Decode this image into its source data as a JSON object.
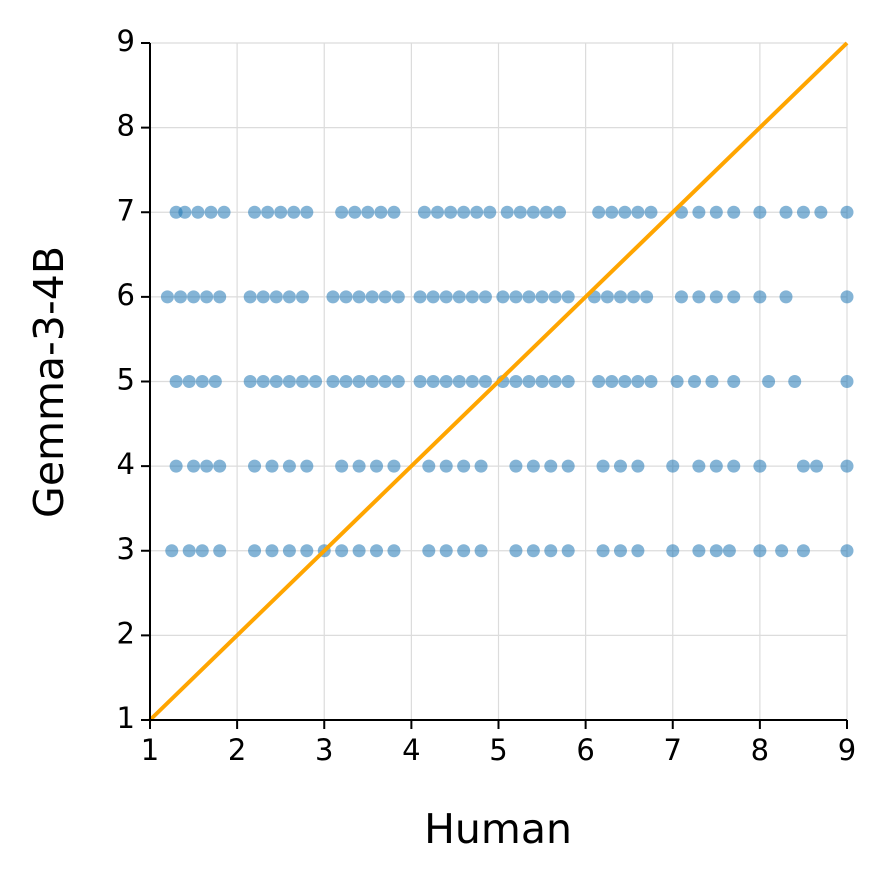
{
  "chart_data": {
    "type": "scatter",
    "x_label": "Human",
    "y_label": "Gemma-3-4B",
    "xlim": [
      1,
      9
    ],
    "ylim": [
      1,
      9
    ],
    "xticks": [
      1,
      2,
      3,
      4,
      5,
      6,
      7,
      8,
      9
    ],
    "yticks": [
      1,
      2,
      3,
      4,
      5,
      6,
      7,
      8,
      9
    ],
    "grid": true,
    "color": "#1f77b4",
    "x": [
      1.3,
      1.4,
      1.55,
      1.7,
      1.85,
      2.2,
      2.35,
      2.5,
      2.65,
      2.8,
      3.2,
      3.35,
      3.5,
      3.65,
      3.8,
      4.15,
      4.3,
      4.45,
      4.6,
      4.75,
      4.9,
      5.1,
      5.25,
      5.4,
      5.55,
      5.7,
      6.15,
      6.3,
      6.45,
      6.6,
      6.75,
      7.1,
      7.3,
      7.5,
      7.7,
      8,
      8.3,
      8.5,
      8.7,
      9,
      1.2,
      1.35,
      1.5,
      1.65,
      1.8,
      2.15,
      2.3,
      2.45,
      2.6,
      2.75,
      3.1,
      3.25,
      3.4,
      3.55,
      3.7,
      3.85,
      4.1,
      4.25,
      4.4,
      4.55,
      4.7,
      4.85,
      5.05,
      5.2,
      5.35,
      5.5,
      5.65,
      5.8,
      6.1,
      6.25,
      6.4,
      6.55,
      6.7,
      7.1,
      7.3,
      7.5,
      7.7,
      8,
      8.3,
      9,
      1.3,
      1.45,
      1.6,
      1.75,
      2.15,
      2.3,
      2.45,
      2.6,
      2.75,
      2.9,
      3.1,
      3.25,
      3.4,
      3.55,
      3.7,
      3.85,
      4.1,
      4.25,
      4.4,
      4.55,
      4.7,
      4.85,
      5.05,
      5.2,
      5.35,
      5.5,
      5.65,
      5.8,
      6.15,
      6.3,
      6.45,
      6.6,
      6.75,
      7.05,
      7.25,
      7.45,
      7.7,
      8.1,
      8.4,
      9,
      1.3,
      1.5,
      1.65,
      1.8,
      2.2,
      2.4,
      2.6,
      2.8,
      3.2,
      3.4,
      3.6,
      3.8,
      4.2,
      4.4,
      4.6,
      4.8,
      5.2,
      5.4,
      5.6,
      5.8,
      6.2,
      6.4,
      6.6,
      7,
      7.3,
      7.5,
      7.7,
      8,
      8.5,
      8.65,
      9,
      1.25,
      1.45,
      1.6,
      1.8,
      2.2,
      2.4,
      2.6,
      2.8,
      3,
      3.2,
      3.4,
      3.6,
      3.8,
      4.2,
      4.4,
      4.6,
      4.8,
      5.2,
      5.4,
      5.6,
      5.8,
      6.2,
      6.4,
      6.6,
      7,
      7.3,
      7.5,
      7.65,
      8,
      8.25,
      8.5,
      9
    ],
    "values": [
      7,
      7,
      7,
      7,
      7,
      7,
      7,
      7,
      7,
      7,
      7,
      7,
      7,
      7,
      7,
      7,
      7,
      7,
      7,
      7,
      7,
      7,
      7,
      7,
      7,
      7,
      7,
      7,
      7,
      7,
      7,
      7,
      7,
      7,
      7,
      7,
      7,
      7,
      7,
      7,
      6,
      6,
      6,
      6,
      6,
      6,
      6,
      6,
      6,
      6,
      6,
      6,
      6,
      6,
      6,
      6,
      6,
      6,
      6,
      6,
      6,
      6,
      6,
      6,
      6,
      6,
      6,
      6,
      6,
      6,
      6,
      6,
      6,
      6,
      6,
      6,
      6,
      6,
      6,
      6,
      5,
      5,
      5,
      5,
      5,
      5,
      5,
      5,
      5,
      5,
      5,
      5,
      5,
      5,
      5,
      5,
      5,
      5,
      5,
      5,
      5,
      5,
      5,
      5,
      5,
      5,
      5,
      5,
      5,
      5,
      5,
      5,
      5,
      5,
      5,
      5,
      5,
      5,
      5,
      5,
      4,
      4,
      4,
      4,
      4,
      4,
      4,
      4,
      4,
      4,
      4,
      4,
      4,
      4,
      4,
      4,
      4,
      4,
      4,
      4,
      4,
      4,
      4,
      4,
      4,
      4,
      4,
      4,
      4,
      4,
      4,
      3,
      3,
      3,
      3,
      3,
      3,
      3,
      3,
      3,
      3,
      3,
      3,
      3,
      3,
      3,
      3,
      3,
      3,
      3,
      3,
      3,
      3,
      3,
      3,
      3,
      3,
      3,
      3,
      3,
      3,
      3,
      3
    ],
    "reference_line": {
      "x": [
        1,
        9
      ],
      "values": [
        1,
        9
      ],
      "color": "#ffa500"
    }
  }
}
